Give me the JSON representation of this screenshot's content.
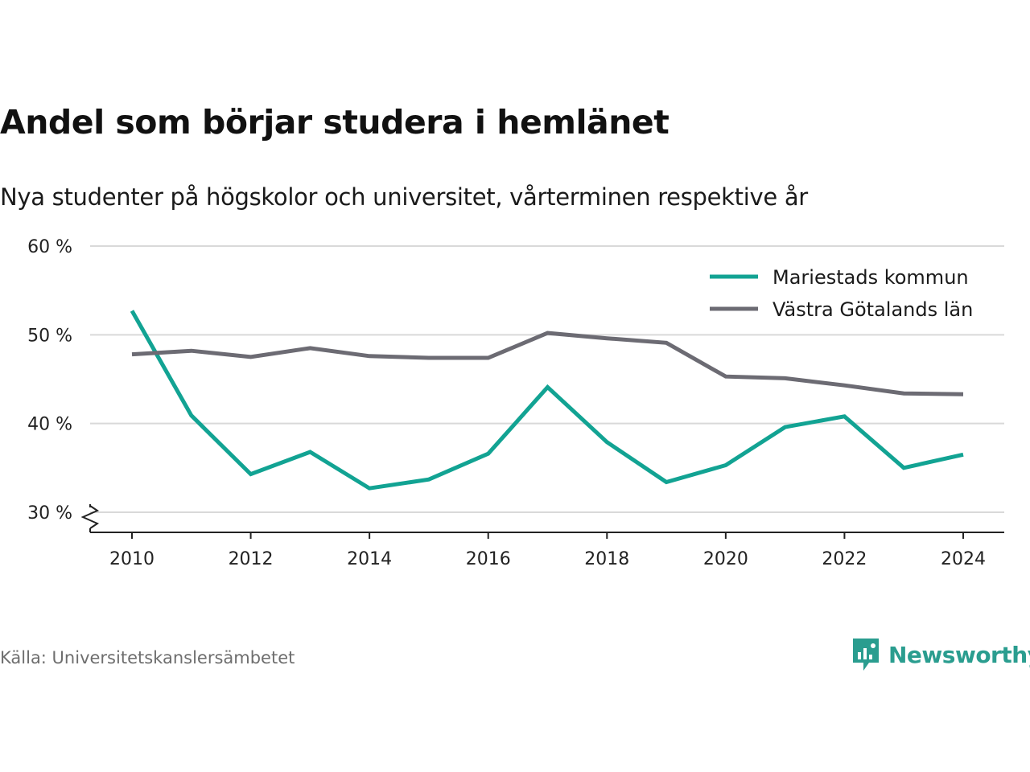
{
  "title": "Andel som börjar studera i hemlänet",
  "subtitle": "Nya studenter på högskolor och universitet, vårterminen respektive år",
  "source": "Källa: Universitetskanslersämbetet",
  "brand": {
    "name": "Newsworthy",
    "icon": "newsworthy-logo-icon",
    "color": "#2a9d8f"
  },
  "colors": {
    "mariestad": "#12a393",
    "vastra_gotaland": "#6c6b73",
    "grid": "#d9d9d9",
    "axis": "#222222"
  },
  "chart_data": {
    "type": "line",
    "title": "Andel som börjar studera i hemlänet",
    "subtitle": "Nya studenter på högskolor och universitet, vårterminen respektive år",
    "x": [
      2010,
      2011,
      2012,
      2013,
      2014,
      2015,
      2016,
      2017,
      2018,
      2019,
      2020,
      2021,
      2022,
      2023,
      2024
    ],
    "x_ticks": [
      2010,
      2012,
      2014,
      2016,
      2018,
      2020,
      2022,
      2024
    ],
    "x_tick_labels": [
      "2010",
      "2012",
      "2014",
      "2016",
      "2018",
      "2020",
      "2022",
      "2024"
    ],
    "y_ticks": [
      30,
      40,
      50,
      60
    ],
    "y_tick_labels": [
      "30 %",
      "40 %",
      "50 %",
      "60 %"
    ],
    "ylim": [
      30,
      60
    ],
    "y_axis_break": true,
    "grid": true,
    "legend_position": "top-right",
    "series": [
      {
        "name": "Mariestads kommun",
        "color": "#12a393",
        "values": [
          52.7,
          40.9,
          34.3,
          36.8,
          32.7,
          33.7,
          36.6,
          44.1,
          37.9,
          33.4,
          35.3,
          39.6,
          40.8,
          35.0,
          36.5
        ]
      },
      {
        "name": "Västra Götalands län",
        "color": "#6c6b73",
        "values": [
          47.8,
          48.2,
          47.5,
          48.5,
          47.6,
          47.4,
          47.4,
          50.2,
          49.6,
          49.1,
          45.3,
          45.1,
          44.3,
          43.4,
          43.3
        ]
      }
    ]
  }
}
